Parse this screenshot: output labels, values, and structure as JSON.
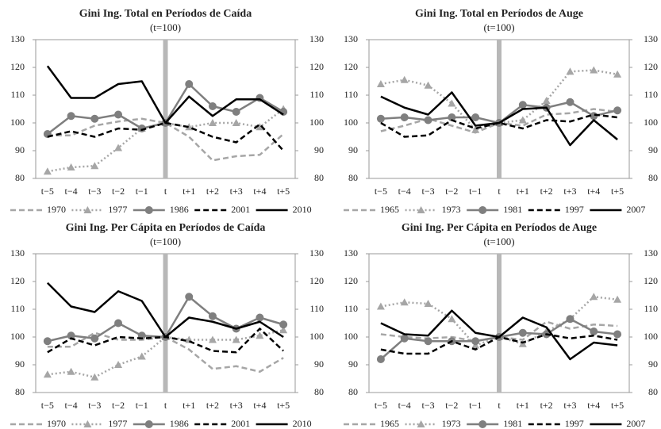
{
  "chart_data": [
    {
      "type": "line",
      "title": "Gini Ing. Total en Períodos de Caída",
      "subtitle": "(t=100)",
      "categories": [
        "t−5",
        "t−4",
        "t−3",
        "t−2",
        "t−1",
        "t",
        "t+1",
        "t+2",
        "t+3",
        "t+4",
        "t+5"
      ],
      "ylim": [
        80,
        130
      ],
      "yticks": [
        80,
        90,
        100,
        110,
        120,
        130
      ],
      "y2lim": [
        80,
        130
      ],
      "y2ticks": [
        80,
        90,
        100,
        110,
        120,
        130
      ],
      "series": [
        {
          "name": "1970",
          "color": "#a6a6a6",
          "dash": "dashed",
          "values": [
            95.5,
            95.5,
            99,
            100.5,
            101.5,
            100,
            95,
            86.5,
            88,
            88.5,
            96
          ]
        },
        {
          "name": "1977",
          "color": "#a6a6a6",
          "dash": "dotted",
          "marker": "triangle",
          "values": [
            82.5,
            84,
            84.5,
            91,
            98,
            100,
            98.5,
            100,
            100,
            98.5,
            105
          ]
        },
        {
          "name": "1986",
          "color": "#7f7f7f",
          "dash": "solid",
          "marker": "circle",
          "values": [
            96,
            102.5,
            101.5,
            103,
            98,
            100,
            114,
            106,
            104,
            109,
            104
          ]
        },
        {
          "name": "2001",
          "color": "#000000",
          "dash": "dashed",
          "values": [
            95,
            97,
            95,
            98,
            97.5,
            100,
            98.5,
            95,
            93,
            99.5,
            90
          ]
        },
        {
          "name": "2010",
          "color": "#000000",
          "dash": "solid",
          "values": [
            120.5,
            109,
            109,
            114,
            115,
            100,
            109.5,
            102.5,
            108.5,
            108.5,
            103
          ]
        }
      ]
    },
    {
      "type": "line",
      "title": "Gini Ing. Total en Períodos de Auge",
      "subtitle": "(t=100)",
      "categories": [
        "t−5",
        "t−4",
        "t−3",
        "t−2",
        "t−1",
        "t",
        "t+1",
        "t+2",
        "t+3",
        "t+4",
        "t+5"
      ],
      "ylim": [
        80,
        130
      ],
      "yticks": [
        80,
        90,
        100,
        110,
        120,
        130
      ],
      "y2lim": [
        80,
        130
      ],
      "y2ticks": [
        80,
        90,
        100,
        110,
        120,
        130
      ],
      "series": [
        {
          "name": "1965",
          "color": "#a6a6a6",
          "dash": "dashed",
          "values": [
            97,
            99,
            101.5,
            99,
            96.5,
            100,
            99,
            103,
            103.5,
            105,
            104
          ]
        },
        {
          "name": "1973",
          "color": "#a6a6a6",
          "dash": "dotted",
          "marker": "triangle",
          "values": [
            114,
            115.5,
            113.5,
            107,
            97.5,
            100,
            101,
            108,
            118.5,
            119,
            117.5
          ]
        },
        {
          "name": "1981",
          "color": "#7f7f7f",
          "dash": "solid",
          "marker": "circle",
          "values": [
            101.5,
            102,
            101,
            102,
            102,
            100,
            106.5,
            105.5,
            107.5,
            102.5,
            104.5
          ]
        },
        {
          "name": "1997",
          "color": "#000000",
          "dash": "dashed",
          "values": [
            100,
            95,
            95.5,
            101,
            98,
            100,
            98,
            101,
            100.5,
            103,
            102
          ]
        },
        {
          "name": "2007",
          "color": "#000000",
          "dash": "solid",
          "values": [
            109.5,
            105.5,
            103,
            111,
            99,
            100,
            105,
            105.5,
            92,
            101,
            94
          ]
        }
      ]
    },
    {
      "type": "line",
      "title": "Gini Ing. Per Cápita en Períodos de Caída",
      "subtitle": "(t=100)",
      "categories": [
        "t−5",
        "t−4",
        "t−3",
        "t−2",
        "t−1",
        "t",
        "t+1",
        "t+2",
        "t+3",
        "t+4",
        "t+5"
      ],
      "ylim": [
        80,
        130
      ],
      "yticks": [
        80,
        90,
        100,
        110,
        120,
        130
      ],
      "y2lim": [
        80,
        130
      ],
      "y2ticks": [
        80,
        90,
        100,
        110,
        120,
        130
      ],
      "series": [
        {
          "name": "1970",
          "color": "#a6a6a6",
          "dash": "dashed",
          "values": [
            96.5,
            96.5,
            101.5,
            99,
            99,
            100,
            95.5,
            88.5,
            89.5,
            87.5,
            92.5
          ]
        },
        {
          "name": "1977",
          "color": "#a6a6a6",
          "dash": "dotted",
          "marker": "triangle",
          "values": [
            86.5,
            87.5,
            85.5,
            90,
            93,
            100,
            99,
            99,
            99,
            100.5,
            102.5
          ]
        },
        {
          "name": "1986",
          "color": "#7f7f7f",
          "dash": "solid",
          "marker": "circle",
          "values": [
            98.5,
            100.5,
            99.5,
            105,
            100.5,
            100,
            114.5,
            107.5,
            103,
            107,
            104.5
          ]
        },
        {
          "name": "2001",
          "color": "#000000",
          "dash": "dashed",
          "values": [
            94.5,
            99.5,
            97,
            100,
            99.5,
            100,
            98.5,
            95,
            94.5,
            103,
            95
          ]
        },
        {
          "name": "2010",
          "color": "#000000",
          "dash": "solid",
          "values": [
            119.5,
            111,
            109,
            116.5,
            113,
            100,
            107,
            105.5,
            103,
            105.5,
            100
          ]
        }
      ]
    },
    {
      "type": "line",
      "title": "Gini Ing. Per Cápita en Períodos de Auge",
      "subtitle": "(t=100)",
      "categories": [
        "t−5",
        "t−4",
        "t−3",
        "t−2",
        "t−1",
        "t",
        "t+1",
        "t+2",
        "t+3",
        "t+4",
        "t+5"
      ],
      "ylim": [
        80,
        130
      ],
      "yticks": [
        80,
        90,
        100,
        110,
        120,
        130
      ],
      "y2lim": [
        80,
        130
      ],
      "y2ticks": [
        80,
        90,
        100,
        110,
        120,
        130
      ],
      "series": [
        {
          "name": "1965",
          "color": "#a6a6a6",
          "dash": "dashed",
          "values": [
            101,
            100,
            99.5,
            100,
            98.5,
            100,
            99,
            105.5,
            103,
            104.5,
            104
          ]
        },
        {
          "name": "1973",
          "color": "#a6a6a6",
          "dash": "dotted",
          "marker": "triangle",
          "values": [
            111,
            112.5,
            112,
            106.5,
            97,
            100,
            97.5,
            102,
            106.5,
            114.5,
            113.5
          ]
        },
        {
          "name": "1981",
          "color": "#7f7f7f",
          "dash": "solid",
          "marker": "circle",
          "values": [
            92,
            99.5,
            98.5,
            98.5,
            98.5,
            100,
            101.5,
            101,
            106.5,
            102,
            101
          ]
        },
        {
          "name": "1997",
          "color": "#000000",
          "dash": "dashed",
          "values": [
            95.5,
            94,
            94,
            98.5,
            95.5,
            100,
            98,
            101,
            99.5,
            100.5,
            99
          ]
        },
        {
          "name": "2007",
          "color": "#000000",
          "dash": "solid",
          "values": [
            105,
            101,
            100.5,
            109.5,
            101.5,
            100,
            107,
            103.5,
            92,
            98,
            97
          ]
        }
      ]
    }
  ]
}
